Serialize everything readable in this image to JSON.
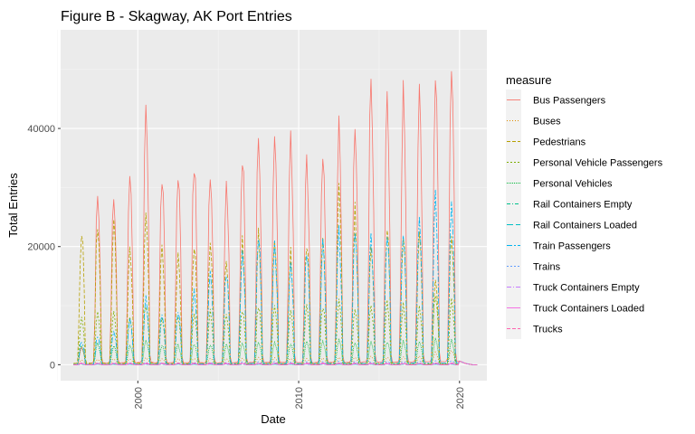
{
  "chart_data": {
    "type": "line",
    "title": "Figure B - Skagway, AK Port Entries",
    "xlabel": "Date",
    "ylabel": "Total Entries",
    "xlim": [
      1995.2,
      2021.7
    ],
    "ylim": [
      -2700,
      56700
    ],
    "x_ticks": [
      2000,
      2010,
      2020
    ],
    "y_ticks": [
      0,
      20000,
      40000
    ],
    "x_ticks_minor": [
      1995,
      2005,
      2015
    ],
    "y_ticks_minor": [
      10000,
      30000,
      50000
    ],
    "grid": true,
    "legend": {
      "title": "measure",
      "placement": "right"
    },
    "series": [
      {
        "name": "Bus Passengers",
        "color": "#F8766D",
        "dash": "",
        "summer_peaks": [
          [
            1996,
            3000
          ],
          [
            1997,
            29500
          ],
          [
            1998,
            30000
          ],
          [
            1999,
            32500
          ],
          [
            2000,
            41500
          ],
          [
            2001,
            32000
          ],
          [
            2002,
            33500
          ],
          [
            2003,
            34500
          ],
          [
            2004,
            34000
          ],
          [
            2005,
            31500
          ],
          [
            2006,
            36500
          ],
          [
            2007,
            38500
          ],
          [
            2008,
            39000
          ],
          [
            2009,
            39000
          ],
          [
            2010,
            35000
          ],
          [
            2011,
            37000
          ],
          [
            2012,
            40000
          ],
          [
            2013,
            40500
          ],
          [
            2014,
            48500
          ],
          [
            2015,
            44500
          ],
          [
            2016,
            45500
          ],
          [
            2017,
            47500
          ],
          [
            2018,
            49500
          ],
          [
            2019,
            54000
          ]
        ]
      },
      {
        "name": "Buses",
        "color": "#DE8C00",
        "dash": "1,2",
        "summer_peaks": [
          [
            1996,
            800
          ],
          [
            1997,
            900
          ],
          [
            1998,
            1000
          ],
          [
            1999,
            1000
          ],
          [
            2000,
            1200
          ],
          [
            2001,
            1000
          ],
          [
            2002,
            1000
          ],
          [
            2003,
            1100
          ],
          [
            2004,
            1100
          ],
          [
            2005,
            1000
          ],
          [
            2006,
            1100
          ],
          [
            2007,
            1200
          ],
          [
            2008,
            1200
          ],
          [
            2009,
            1100
          ],
          [
            2010,
            1000
          ],
          [
            2011,
            1100
          ],
          [
            2012,
            1200
          ],
          [
            2013,
            1200
          ],
          [
            2014,
            1400
          ],
          [
            2015,
            1300
          ],
          [
            2016,
            1400
          ],
          [
            2017,
            1500
          ],
          [
            2018,
            2000
          ],
          [
            2019,
            2500
          ]
        ]
      },
      {
        "name": "Pedestrians",
        "color": "#B79F00",
        "dash": "4,2",
        "summer_peaks": [
          [
            1996,
            23000
          ],
          [
            1997,
            24500
          ],
          [
            1998,
            24000
          ],
          [
            1999,
            20000
          ],
          [
            2000,
            26500
          ],
          [
            2001,
            19500
          ],
          [
            2002,
            19000
          ],
          [
            2003,
            20500
          ],
          [
            2004,
            20500
          ],
          [
            2005,
            18500
          ],
          [
            2006,
            21000
          ],
          [
            2007,
            21500
          ],
          [
            2008,
            21000
          ],
          [
            2009,
            18500
          ],
          [
            2010,
            21000
          ],
          [
            2011,
            21500
          ],
          [
            2012,
            29000
          ],
          [
            2013,
            26000
          ],
          [
            2014,
            21000
          ],
          [
            2015,
            23000
          ],
          [
            2016,
            22000
          ],
          [
            2017,
            22500
          ],
          [
            2018,
            14000
          ],
          [
            2019,
            22000
          ]
        ]
      },
      {
        "name": "Personal Vehicle Passengers",
        "color": "#7CAE00",
        "dash": "2,2",
        "summer_peaks": [
          [
            1996,
            8000
          ],
          [
            1997,
            9000
          ],
          [
            1998,
            8500
          ],
          [
            1999,
            8000
          ],
          [
            2000,
            10500
          ],
          [
            2001,
            8500
          ],
          [
            2002,
            8500
          ],
          [
            2003,
            9000
          ],
          [
            2004,
            9000
          ],
          [
            2005,
            8500
          ],
          [
            2006,
            9500
          ],
          [
            2007,
            10000
          ],
          [
            2008,
            10000
          ],
          [
            2009,
            9000
          ],
          [
            2010,
            10500
          ],
          [
            2011,
            10000
          ],
          [
            2012,
            10500
          ],
          [
            2013,
            10000
          ],
          [
            2014,
            10000
          ],
          [
            2015,
            10500
          ],
          [
            2016,
            10500
          ],
          [
            2017,
            10000
          ],
          [
            2018,
            12000
          ],
          [
            2019,
            11000
          ]
        ]
      },
      {
        "name": "Personal Vehicles",
        "color": "#00BA38",
        "dash": "1,1",
        "summer_peaks": [
          [
            1996,
            3000
          ],
          [
            1997,
            3500
          ],
          [
            1998,
            3300
          ],
          [
            1999,
            3200
          ],
          [
            2000,
            4000
          ],
          [
            2001,
            3300
          ],
          [
            2002,
            3300
          ],
          [
            2003,
            3500
          ],
          [
            2004,
            3500
          ],
          [
            2005,
            3300
          ],
          [
            2006,
            3600
          ],
          [
            2007,
            3800
          ],
          [
            2008,
            3800
          ],
          [
            2009,
            3500
          ],
          [
            2010,
            3900
          ],
          [
            2011,
            3800
          ],
          [
            2012,
            4000
          ],
          [
            2013,
            3800
          ],
          [
            2014,
            3800
          ],
          [
            2015,
            4000
          ],
          [
            2016,
            4000
          ],
          [
            2017,
            3900
          ],
          [
            2018,
            4200
          ],
          [
            2019,
            4100
          ]
        ]
      },
      {
        "name": "Rail Containers Empty",
        "color": "#00C08B",
        "dash": "4,2,1,2",
        "summer_peaks": [
          [
            1996,
            100
          ],
          [
            1997,
            100
          ],
          [
            1998,
            100
          ],
          [
            1999,
            100
          ],
          [
            2000,
            100
          ],
          [
            2001,
            100
          ],
          [
            2002,
            100
          ],
          [
            2003,
            100
          ],
          [
            2004,
            100
          ],
          [
            2005,
            100
          ],
          [
            2006,
            100
          ],
          [
            2007,
            100
          ],
          [
            2008,
            100
          ],
          [
            2009,
            100
          ],
          [
            2010,
            100
          ],
          [
            2011,
            100
          ],
          [
            2012,
            100
          ],
          [
            2013,
            100
          ],
          [
            2014,
            100
          ],
          [
            2015,
            100
          ],
          [
            2016,
            100
          ],
          [
            2017,
            100
          ],
          [
            2018,
            100
          ],
          [
            2019,
            100
          ]
        ]
      },
      {
        "name": "Rail Containers Loaded",
        "color": "#00BFC4",
        "dash": "7,3",
        "summer_peaks": [
          [
            1996,
            100
          ],
          [
            1997,
            100
          ],
          [
            1998,
            100
          ],
          [
            1999,
            100
          ],
          [
            2000,
            100
          ],
          [
            2001,
            100
          ],
          [
            2002,
            100
          ],
          [
            2003,
            100
          ],
          [
            2004,
            100
          ],
          [
            2005,
            100
          ],
          [
            2006,
            100
          ],
          [
            2007,
            100
          ],
          [
            2008,
            100
          ],
          [
            2009,
            100
          ],
          [
            2010,
            100
          ],
          [
            2011,
            100
          ],
          [
            2012,
            100
          ],
          [
            2013,
            100
          ],
          [
            2014,
            100
          ],
          [
            2015,
            100
          ],
          [
            2016,
            100
          ],
          [
            2017,
            100
          ],
          [
            2018,
            100
          ],
          [
            2019,
            100
          ]
        ]
      },
      {
        "name": "Train Passengers",
        "color": "#00B4F0",
        "dash": "6,2,2,2",
        "summer_peaks": [
          [
            1996,
            4000
          ],
          [
            1997,
            5000
          ],
          [
            1998,
            6000
          ],
          [
            1999,
            7500
          ],
          [
            2000,
            11000
          ],
          [
            2001,
            9000
          ],
          [
            2002,
            9500
          ],
          [
            2003,
            13000
          ],
          [
            2004,
            15000
          ],
          [
            2005,
            16000
          ],
          [
            2006,
            19000
          ],
          [
            2007,
            22000
          ],
          [
            2008,
            20500
          ],
          [
            2009,
            17500
          ],
          [
            2010,
            19000
          ],
          [
            2011,
            20000
          ],
          [
            2012,
            22000
          ],
          [
            2013,
            24000
          ],
          [
            2014,
            21000
          ],
          [
            2015,
            23000
          ],
          [
            2016,
            22000
          ],
          [
            2017,
            25000
          ],
          [
            2018,
            27500
          ],
          [
            2019,
            27500
          ]
        ]
      },
      {
        "name": "Trains",
        "color": "#619CFF",
        "dash": "2,2",
        "summer_peaks": [
          [
            1996,
            200
          ],
          [
            1997,
            250
          ],
          [
            1998,
            250
          ],
          [
            1999,
            300
          ],
          [
            2000,
            350
          ],
          [
            2001,
            300
          ],
          [
            2002,
            300
          ],
          [
            2003,
            350
          ],
          [
            2004,
            400
          ],
          [
            2005,
            400
          ],
          [
            2006,
            450
          ],
          [
            2007,
            500
          ],
          [
            2008,
            500
          ],
          [
            2009,
            450
          ],
          [
            2010,
            500
          ],
          [
            2011,
            500
          ],
          [
            2012,
            550
          ],
          [
            2013,
            550
          ],
          [
            2014,
            500
          ],
          [
            2015,
            550
          ],
          [
            2016,
            550
          ],
          [
            2017,
            600
          ],
          [
            2018,
            650
          ],
          [
            2019,
            650
          ]
        ]
      },
      {
        "name": "Truck Containers Empty",
        "color": "#C77CFF",
        "dash": "5,2,1,2",
        "summer_peaks": [
          [
            1996,
            150
          ],
          [
            1997,
            150
          ],
          [
            1998,
            150
          ],
          [
            1999,
            150
          ],
          [
            2000,
            150
          ],
          [
            2001,
            150
          ],
          [
            2002,
            150
          ],
          [
            2003,
            150
          ],
          [
            2004,
            150
          ],
          [
            2005,
            150
          ],
          [
            2006,
            150
          ],
          [
            2007,
            150
          ],
          [
            2008,
            150
          ],
          [
            2009,
            150
          ],
          [
            2010,
            150
          ],
          [
            2011,
            150
          ],
          [
            2012,
            150
          ],
          [
            2013,
            150
          ],
          [
            2014,
            150
          ],
          [
            2015,
            150
          ],
          [
            2016,
            150
          ],
          [
            2017,
            150
          ],
          [
            2018,
            150
          ],
          [
            2019,
            150
          ]
        ]
      },
      {
        "name": "Truck Containers Loaded",
        "color": "#F564E3",
        "dash": "",
        "summer_peaks": [
          [
            1996,
            200
          ],
          [
            1997,
            200
          ],
          [
            1998,
            200
          ],
          [
            1999,
            200
          ],
          [
            2000,
            200
          ],
          [
            2001,
            200
          ],
          [
            2002,
            200
          ],
          [
            2003,
            200
          ],
          [
            2004,
            200
          ],
          [
            2005,
            200
          ],
          [
            2006,
            200
          ],
          [
            2007,
            200
          ],
          [
            2008,
            200
          ],
          [
            2009,
            200
          ],
          [
            2010,
            200
          ],
          [
            2011,
            200
          ],
          [
            2012,
            200
          ],
          [
            2013,
            200
          ],
          [
            2014,
            200
          ],
          [
            2015,
            200
          ],
          [
            2016,
            200
          ],
          [
            2017,
            200
          ],
          [
            2018,
            200
          ],
          [
            2019,
            200
          ]
        ]
      },
      {
        "name": "Trucks",
        "color": "#FF64B0",
        "dash": "4,2",
        "summer_peaks": [
          [
            1996,
            300
          ],
          [
            1997,
            300
          ],
          [
            1998,
            300
          ],
          [
            1999,
            300
          ],
          [
            2000,
            300
          ],
          [
            2001,
            300
          ],
          [
            2002,
            300
          ],
          [
            2003,
            300
          ],
          [
            2004,
            300
          ],
          [
            2005,
            300
          ],
          [
            2006,
            300
          ],
          [
            2007,
            300
          ],
          [
            2008,
            300
          ],
          [
            2009,
            300
          ],
          [
            2010,
            300
          ],
          [
            2011,
            300
          ],
          [
            2012,
            300
          ],
          [
            2013,
            300
          ],
          [
            2014,
            300
          ],
          [
            2015,
            300
          ],
          [
            2016,
            300
          ],
          [
            2017,
            300
          ],
          [
            2018,
            300
          ],
          [
            2019,
            300
          ]
        ]
      }
    ]
  }
}
